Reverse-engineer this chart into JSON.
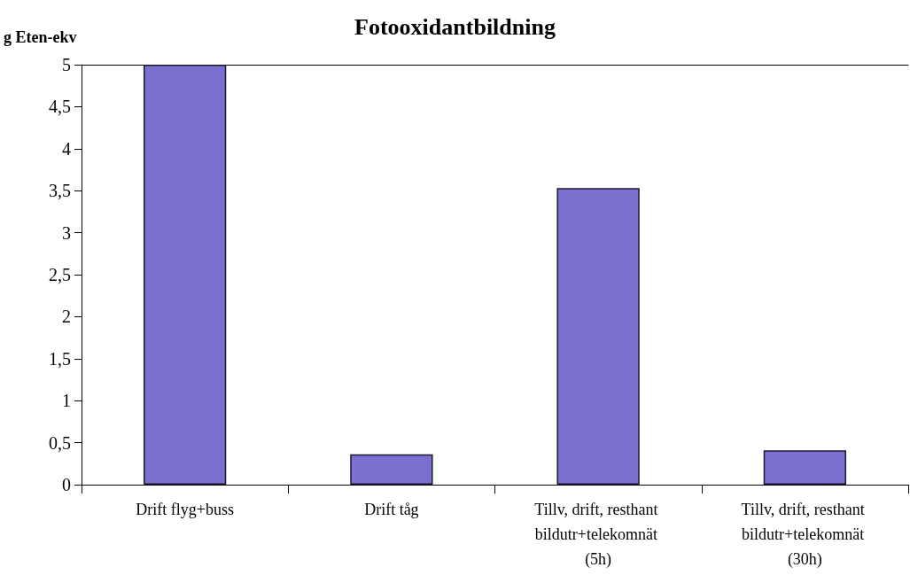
{
  "chart_data": {
    "type": "bar",
    "title": "Fotooxidantbildning",
    "ylabel": "g Eten-ekv",
    "categories": [
      "Drift flyg+buss",
      "Drift tåg",
      "Tillv, drift, resthant bildutr+telekomnät (5h)",
      "Tillv, drift, resthant bildutr+telekomnät (30h)"
    ],
    "values": [
      5.0,
      0.36,
      3.53,
      0.41
    ],
    "color": "#7b6fd0",
    "ylim": [
      0,
      5
    ],
    "yticks": [
      0,
      {
        "value": 0.5,
        "label": "0,5"
      },
      1,
      {
        "value": 1.5,
        "label": "1,5"
      },
      2,
      {
        "value": 2.5,
        "label": "2,5"
      },
      3,
      {
        "value": 3.5,
        "label": "3,5"
      },
      4,
      {
        "value": 4.5,
        "label": "4,5"
      },
      5
    ],
    "grid": false
  }
}
